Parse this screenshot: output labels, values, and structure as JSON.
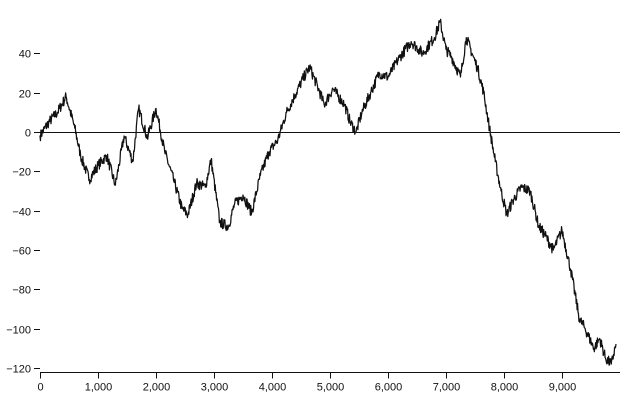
{
  "chart_data": {
    "type": "line",
    "title": "",
    "xlabel": "",
    "ylabel": "",
    "xlim": [
      0,
      10000
    ],
    "ylim": [
      -122,
      58
    ],
    "grid": false,
    "x_ticks": [
      0,
      1000,
      2000,
      3000,
      4000,
      5000,
      6000,
      7000,
      8000,
      9000
    ],
    "x_tick_labels": [
      "0",
      "1,000",
      "2,000",
      "3,000",
      "4,000",
      "5,000",
      "6,000",
      "7,000",
      "8,000",
      "9,000"
    ],
    "y_ticks": [
      40,
      20,
      0,
      -20,
      -40,
      -60,
      -80,
      -100,
      -120
    ],
    "y_tick_labels": [
      "40",
      "20",
      "0",
      "−20",
      "−40",
      "−60",
      "−80",
      "−100",
      "−120"
    ],
    "reference_line": {
      "y": 0
    },
    "color": "#111111",
    "series": [
      {
        "x": [
          0,
          150,
          300,
          450,
          600,
          700,
          850,
          1000,
          1150,
          1300,
          1450,
          1600,
          1700,
          1850,
          2000,
          2150,
          2300,
          2450,
          2550,
          2700,
          2850,
          2950,
          3100,
          3250,
          3350,
          3500,
          3650,
          3800,
          3950,
          4100,
          4250,
          4400,
          4550,
          4650,
          4800,
          4900,
          5050,
          5250,
          5350,
          5450,
          5550,
          5700,
          5850,
          6000,
          6200,
          6400,
          6600,
          6800,
          6900,
          7000,
          7100,
          7250,
          7350,
          7450,
          7550,
          7650,
          7750,
          7850,
          7950,
          8050,
          8150,
          8300,
          8450,
          8600,
          8700,
          8850,
          9000,
          9150,
          9300,
          9400,
          9550,
          9650,
          9750,
          9850,
          9930
        ],
        "values": [
          -2,
          5,
          10,
          18,
          2,
          -12,
          -24,
          -17,
          -12,
          -27,
          -2,
          -15,
          12,
          -3,
          12,
          -10,
          -24,
          -39,
          -42,
          -26,
          -28,
          -14,
          -46,
          -48,
          -37,
          -32,
          -41,
          -22,
          -10,
          -4,
          10,
          19,
          28,
          33,
          22,
          14,
          22,
          14,
          5,
          0,
          10,
          20,
          30,
          28,
          38,
          46,
          40,
          48,
          56,
          42,
          38,
          28,
          48,
          40,
          32,
          20,
          2,
          -15,
          -30,
          -42,
          -35,
          -28,
          -30,
          -48,
          -52,
          -60,
          -50,
          -70,
          -95,
          -100,
          -110,
          -105,
          -115,
          -118,
          -108
        ]
      }
    ]
  }
}
